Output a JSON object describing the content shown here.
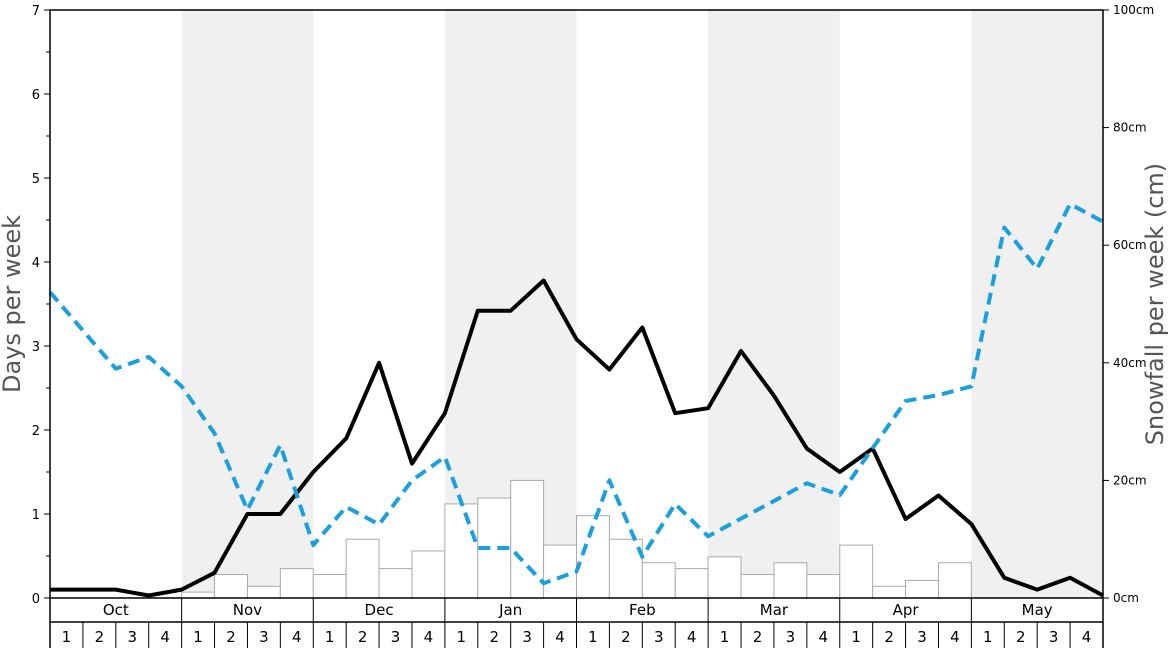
{
  "chart_data": {
    "type": "bar",
    "months": [
      "Oct",
      "Nov",
      "Dec",
      "Jan",
      "Feb",
      "Mar",
      "Apr",
      "May"
    ],
    "week_labels": [
      "1",
      "2",
      "3",
      "4"
    ],
    "left_axis": {
      "label": "Days per week",
      "ylim": [
        0,
        7
      ],
      "ticks": [
        "0",
        "1",
        "2",
        "3",
        "4",
        "5",
        "6",
        "7"
      ]
    },
    "right_axis": {
      "label": "Snowfall per week (cm)",
      "ylim": [
        0,
        100
      ],
      "ticks": [
        "0cm",
        "20cm",
        "40cm",
        "60cm",
        "80cm",
        "100cm"
      ]
    },
    "series": [
      {
        "kind": "bar",
        "axis": "right",
        "values": [
          0,
          0,
          0,
          0,
          1,
          4,
          2,
          5,
          4,
          10,
          5,
          8,
          16,
          17,
          20,
          9,
          14,
          10,
          6,
          5,
          7,
          4,
          6,
          4,
          9,
          2,
          3,
          6,
          0,
          0,
          0,
          0
        ]
      },
      {
        "kind": "line",
        "axis": "left",
        "style": "solid",
        "color": "#000000",
        "values": [
          0.1,
          0.1,
          0.1,
          0.03,
          0.1,
          0.3,
          1.0,
          1.0,
          1.5,
          1.9,
          2.8,
          1.6,
          2.2,
          3.42,
          3.42,
          3.78,
          3.08,
          2.72,
          3.22,
          2.2,
          2.26,
          2.94,
          2.41,
          1.78,
          1.5,
          1.78,
          0.94,
          1.22,
          0.88,
          0.24,
          0.1,
          0.24,
          0.03
        ]
      },
      {
        "kind": "line",
        "axis": "right",
        "style": "dashed",
        "color": "#1a9fe0",
        "values": [
          52,
          45.5,
          39,
          41,
          36,
          28,
          15,
          26,
          9,
          15.5,
          12.5,
          20,
          24,
          8.5,
          8.5,
          2.5,
          4.5,
          20,
          7,
          16,
          10.5,
          13.5,
          16.5,
          19.5,
          17.5,
          25.5,
          33.5,
          34.5,
          36,
          63,
          56,
          67,
          64
        ]
      }
    ],
    "shaded_months": [
      "Nov",
      "Jan",
      "Mar",
      "May"
    ],
    "shade_color": "#f0f0f0"
  }
}
